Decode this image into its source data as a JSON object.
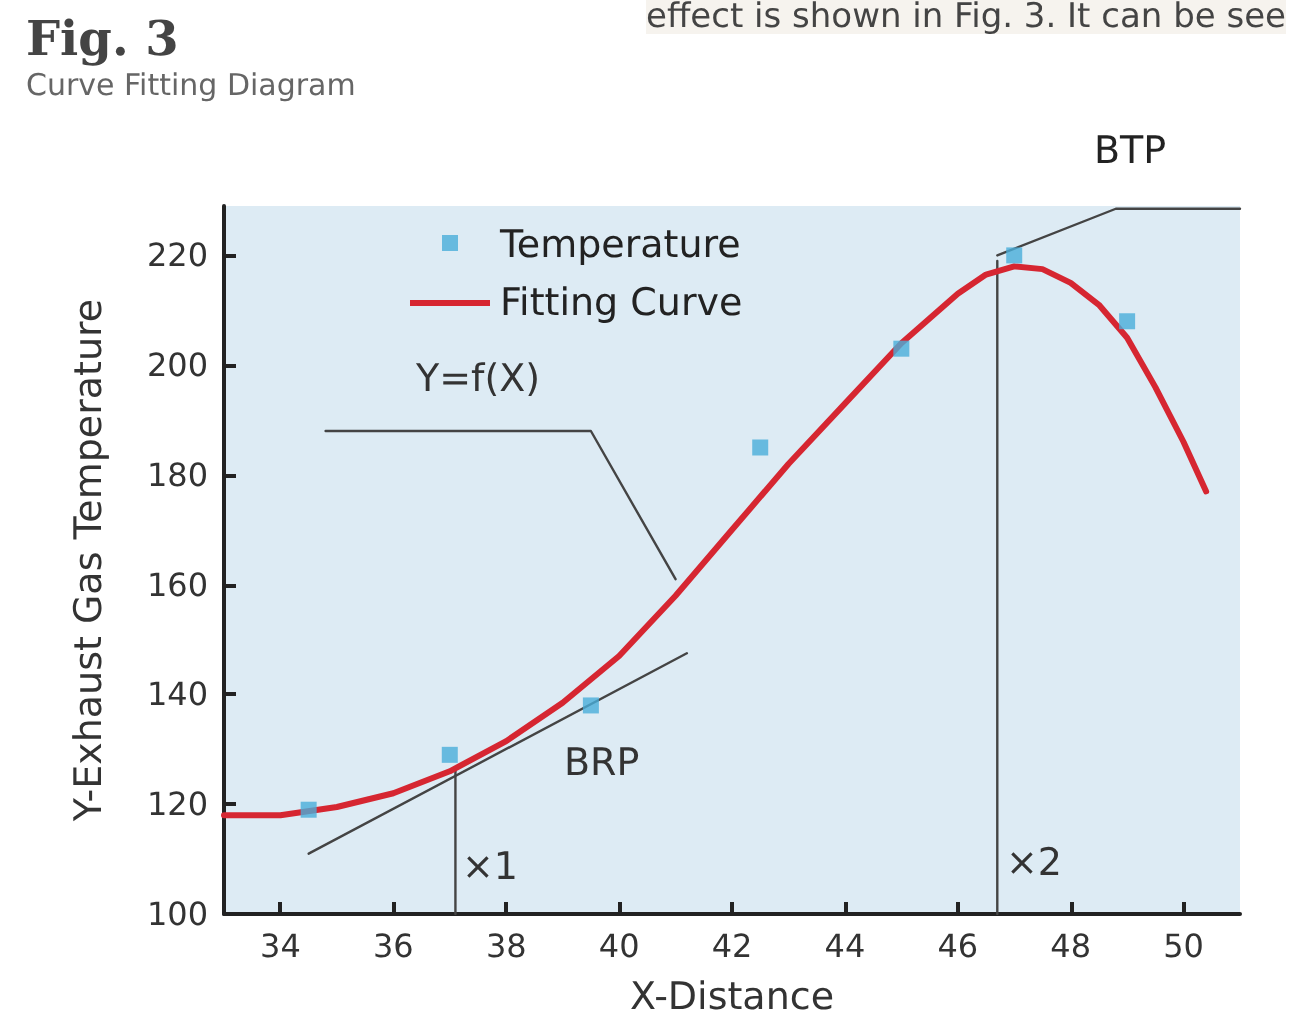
{
  "chart_data": {
    "type": "scatter",
    "title": "Fig. 3",
    "subtitle": "Curve Fitting Diagram",
    "xlabel": "X-Distance",
    "ylabel": "Y-Exhaust Gas Temperature",
    "xlim": [
      33,
      51
    ],
    "xticks": [
      34,
      36,
      38,
      40,
      42,
      44,
      46,
      48,
      50
    ],
    "ylim": [
      100,
      229
    ],
    "yticks": [
      100,
      120,
      140,
      160,
      180,
      200,
      220
    ],
    "grid": false,
    "legend": "top",
    "line_style": "solid",
    "series": [
      {
        "name": "Temperature",
        "marker": "square",
        "color": "#4aaed9",
        "x": [
          34.5,
          37,
          39.5,
          42.5,
          45,
          47,
          49
        ],
        "values": [
          119,
          129,
          138,
          185,
          203,
          220,
          208
        ]
      },
      {
        "name": "Fitting Curve",
        "type": "line",
        "color": "#d62631",
        "x": [
          33,
          34,
          35,
          36,
          37,
          38,
          39,
          40,
          41,
          42,
          43,
          44,
          45,
          46,
          46.5,
          47,
          47.5,
          48,
          48.5,
          49,
          49.5,
          50,
          50.4
        ],
        "values": [
          118,
          118,
          119.5,
          122,
          126,
          131.5,
          138.5,
          147,
          158,
          170,
          182,
          193,
          204,
          213,
          216.5,
          218,
          217.5,
          215,
          211,
          205,
          196,
          186,
          177
        ]
      },
      {
        "type": "line",
        "color": "#444444",
        "x": [
          34.5,
          41.2
        ],
        "values": [
          111,
          147.5
        ]
      },
      {
        "type": "line",
        "color": "#444444",
        "x": [
          37.1,
          37.1
        ],
        "values": [
          100,
          126
        ]
      },
      {
        "type": "line",
        "color": "#444444",
        "x": [
          46.7,
          46.7
        ],
        "values": [
          100,
          219
        ]
      },
      {
        "type": "line",
        "color": "#444444",
        "x": [
          46.7,
          48.8,
          51
        ],
        "values": [
          220,
          228.5,
          228.5
        ]
      },
      {
        "type": "line",
        "color": "#444444",
        "x": [
          34.8,
          39.5,
          41.0
        ],
        "values": [
          188,
          188,
          161
        ]
      }
    ],
    "annotations": [
      "effect is shown in Fig. 3. It can be see",
      "Y=f(X)",
      "BRP",
      "×1",
      "×2",
      "BTP"
    ]
  }
}
